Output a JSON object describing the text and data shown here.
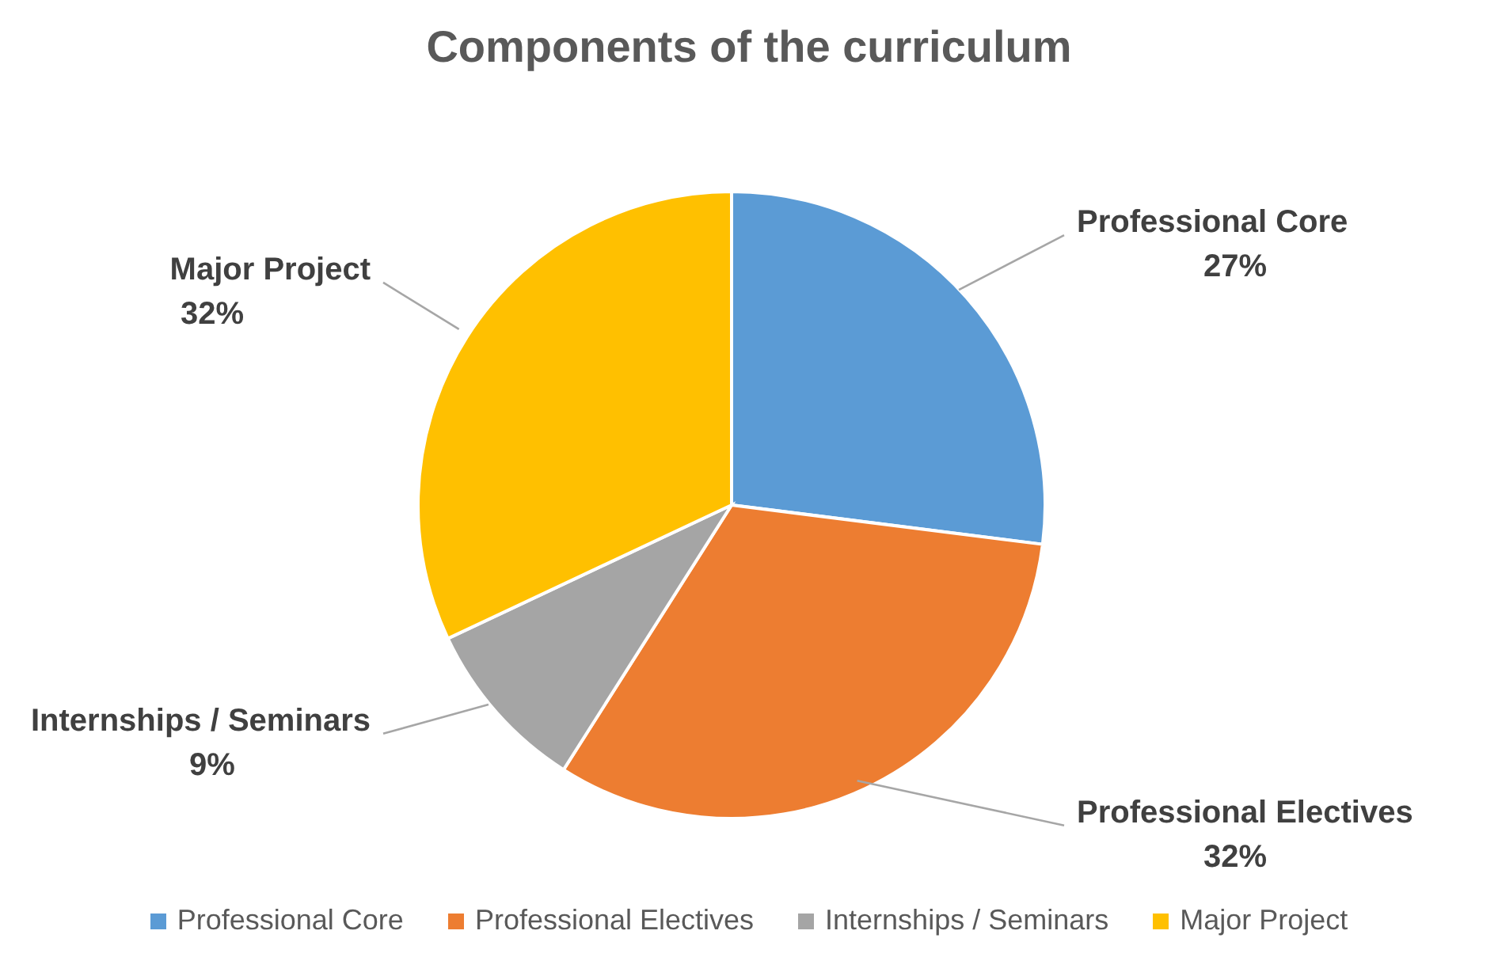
{
  "chart_data": {
    "type": "pie",
    "title": "Components of the curriculum",
    "categories": [
      "Professional Core",
      "Professional Electives",
      "Internships / Seminars",
      "Major Project"
    ],
    "values": [
      27,
      32,
      9,
      32
    ],
    "value_labels": [
      "27%",
      "32%",
      "9%",
      "32%"
    ],
    "colors": [
      "#5b9bd5",
      "#ed7d31",
      "#a5a5a5",
      "#ffc000"
    ],
    "legend": "bottom"
  }
}
